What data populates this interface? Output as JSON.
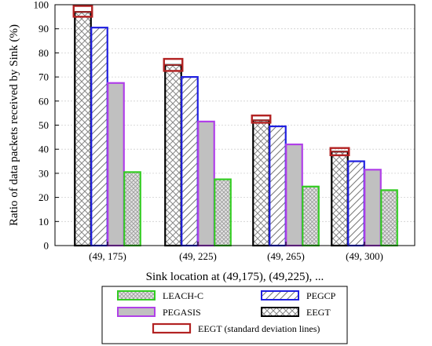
{
  "chart_data": {
    "type": "bar",
    "categories": [
      "(49, 175)",
      "(49, 225)",
      "(49, 265)",
      "(49, 300)"
    ],
    "xlabel": "Sink location at (49,175), (49,225), ...",
    "ylabel": "Ratio of data packets received by Sink (%)",
    "ylim": [
      0,
      100
    ],
    "yticks": [
      0,
      10,
      20,
      30,
      40,
      50,
      60,
      70,
      80,
      90,
      100
    ],
    "grid": true,
    "legend_position": "bottom",
    "series": [
      {
        "name": "EEGT",
        "values": [
          97,
          75,
          52,
          39
        ],
        "color": "#000000",
        "fill": "#ffffff",
        "pattern": "crosshatch"
      },
      {
        "name": "PEGCP",
        "values": [
          90.5,
          70,
          49.5,
          35
        ],
        "color": "#1f1fe0",
        "fill": "#ffffff",
        "pattern": "diagonal"
      },
      {
        "name": "PEGASIS",
        "values": [
          67.5,
          51.5,
          42,
          31.5
        ],
        "color": "#b040e8",
        "fill": "#c0c0c0",
        "pattern": "solid"
      },
      {
        "name": "LEACH-C",
        "values": [
          30.5,
          27.5,
          24.5,
          23
        ],
        "color": "#33cc22",
        "fill": "#e6e6e6",
        "pattern": "dots"
      }
    ],
    "error_bars": {
      "name": "EEGT (standard deviation lines)",
      "series": "EEGT",
      "color": "#b22222",
      "low": [
        95,
        72.5,
        51,
        37.5
      ],
      "high": [
        99.5,
        77.5,
        54,
        40.5
      ]
    }
  },
  "legend": [
    {
      "label": "LEACH-C",
      "series": "LEACH-C"
    },
    {
      "label": "PEGCP",
      "series": "PEGCP"
    },
    {
      "label": "PEGASIS",
      "series": "PEGASIS"
    },
    {
      "label": "EEGT",
      "series": "EEGT"
    },
    {
      "label": "EEGT (standard deviation lines)",
      "series": "errors"
    }
  ]
}
